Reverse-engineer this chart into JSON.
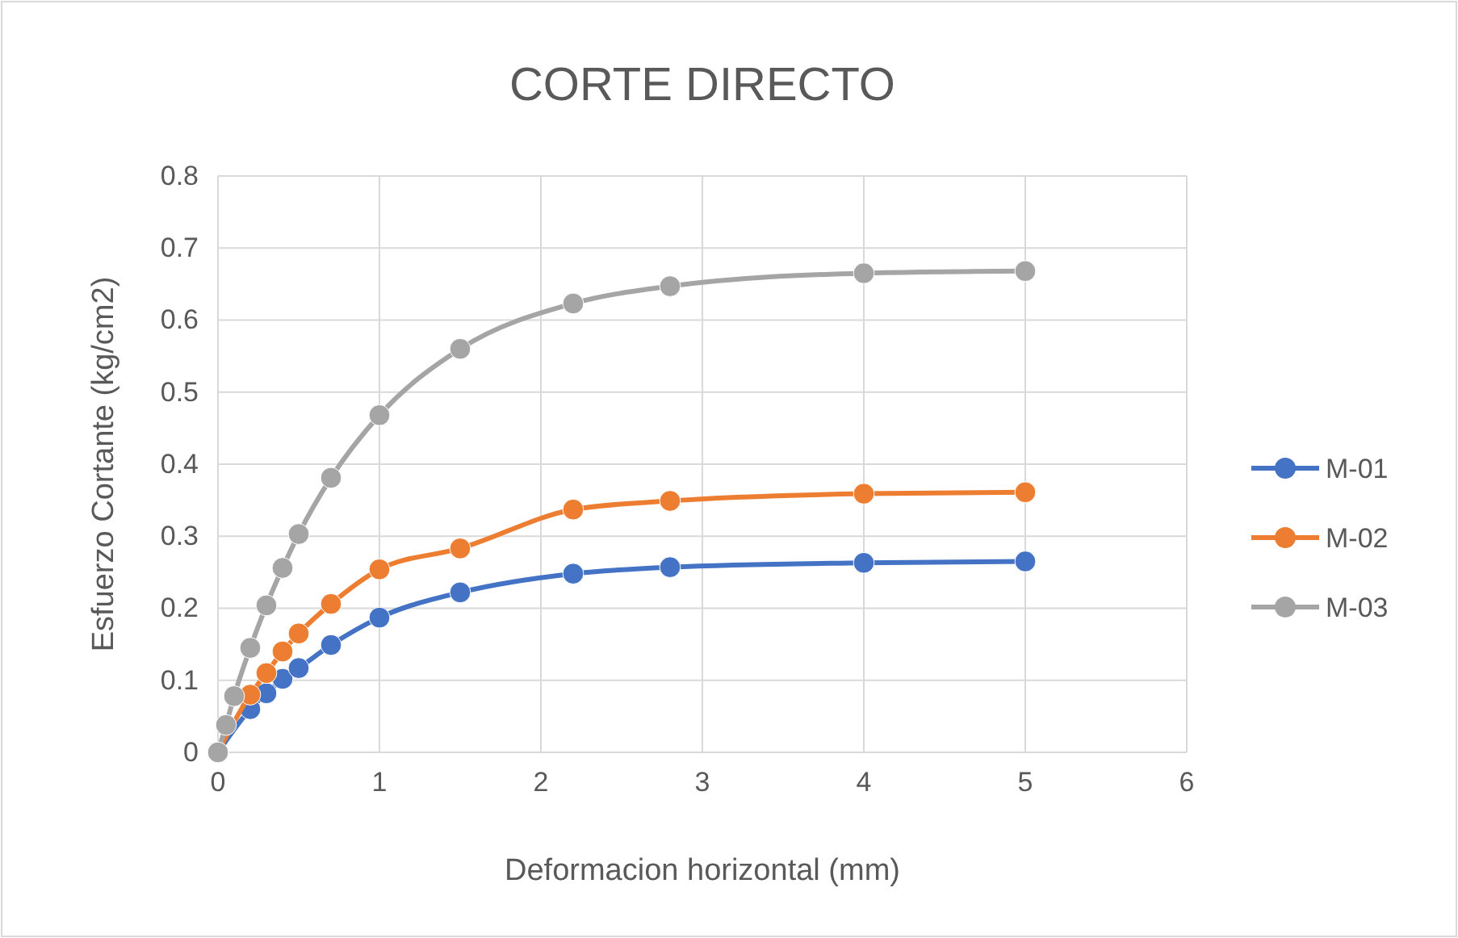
{
  "chart_data": {
    "type": "line",
    "title": "CORTE DIRECTO",
    "xlabel": "Deformacion horizontal (mm)",
    "ylabel": "Esfuerzo Cortante (kg/cm2)",
    "x": [
      0,
      0.05,
      0.1,
      0.2,
      0.3,
      0.4,
      0.5,
      0.7,
      1,
      1.5,
      2.2,
      2.8,
      4,
      5
    ],
    "series": [
      {
        "name": "M-01",
        "color": "#4472c4",
        "values": [
          0,
          null,
          null,
          0.06,
          0.082,
          0.102,
          0.117,
          0.149,
          0.187,
          0.222,
          0.248,
          0.257,
          0.263,
          0.265
        ]
      },
      {
        "name": "M-02",
        "color": "#ed7d31",
        "values": [
          0,
          null,
          null,
          0.08,
          0.11,
          0.14,
          0.165,
          0.206,
          0.254,
          0.283,
          0.337,
          0.349,
          0.359,
          0.361
        ]
      },
      {
        "name": "M-03",
        "color": "#a5a5a5",
        "values": [
          0,
          0.038,
          0.078,
          0.145,
          0.204,
          0.256,
          0.303,
          0.381,
          0.468,
          0.56,
          0.623,
          0.647,
          0.665,
          0.668
        ]
      }
    ],
    "xlim": [
      0,
      6
    ],
    "xticks": [
      0,
      1,
      2,
      3,
      4,
      5,
      6
    ],
    "ylim": [
      0,
      0.8
    ],
    "yticks": [
      0,
      0.1,
      0.2,
      0.3,
      0.4,
      0.5,
      0.6,
      0.7,
      0.8
    ],
    "grid": true,
    "legend": "right",
    "marker": "circle",
    "line_style": "solid"
  }
}
